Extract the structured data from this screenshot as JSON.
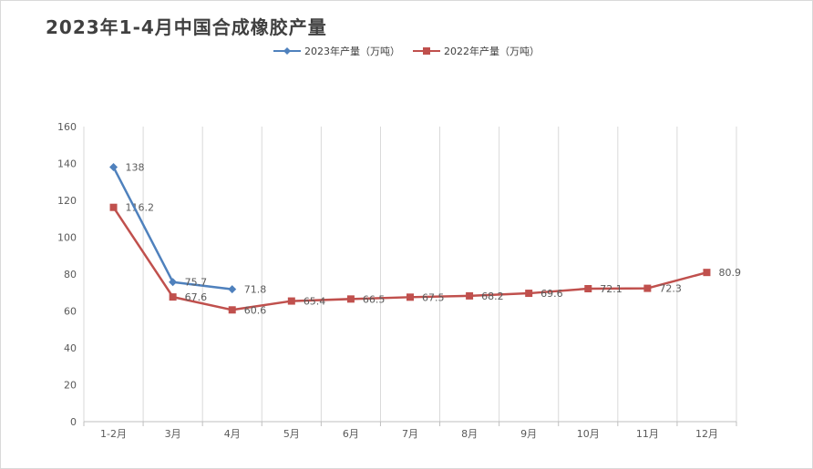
{
  "chart_data": {
    "type": "line",
    "title": "2023年1-4月中国合成橡胶产量",
    "categories": [
      "1-2月",
      "3月",
      "4月",
      "5月",
      "6月",
      "7月",
      "8月",
      "9月",
      "10月",
      "11月",
      "12月"
    ],
    "series": [
      {
        "name": "2023年产量（万吨）",
        "color": "#4f81bd",
        "marker": "diamond",
        "values": [
          138,
          75.7,
          71.8,
          null,
          null,
          null,
          null,
          null,
          null,
          null,
          null
        ],
        "labels": [
          "138",
          "75.7",
          "71.8"
        ]
      },
      {
        "name": "2022年产量（万吨）",
        "color": "#c0504d",
        "marker": "square",
        "values": [
          116.2,
          67.6,
          60.6,
          65.4,
          66.5,
          67.5,
          68.2,
          69.6,
          72.1,
          72.3,
          80.9
        ],
        "labels": [
          "116.2",
          "67.6",
          "60.6",
          "65.4",
          "66.5",
          "67.5",
          "68.2",
          "69.6",
          "72.1",
          "72.3",
          "80.9"
        ]
      }
    ],
    "ylim": [
      0,
      160
    ],
    "yticks": [
      "0",
      "20",
      "40",
      "60",
      "80",
      "100",
      "120",
      "140",
      "160"
    ],
    "xlabel": "",
    "ylabel": "",
    "grid": "vertical",
    "legend_position": "top-center"
  }
}
